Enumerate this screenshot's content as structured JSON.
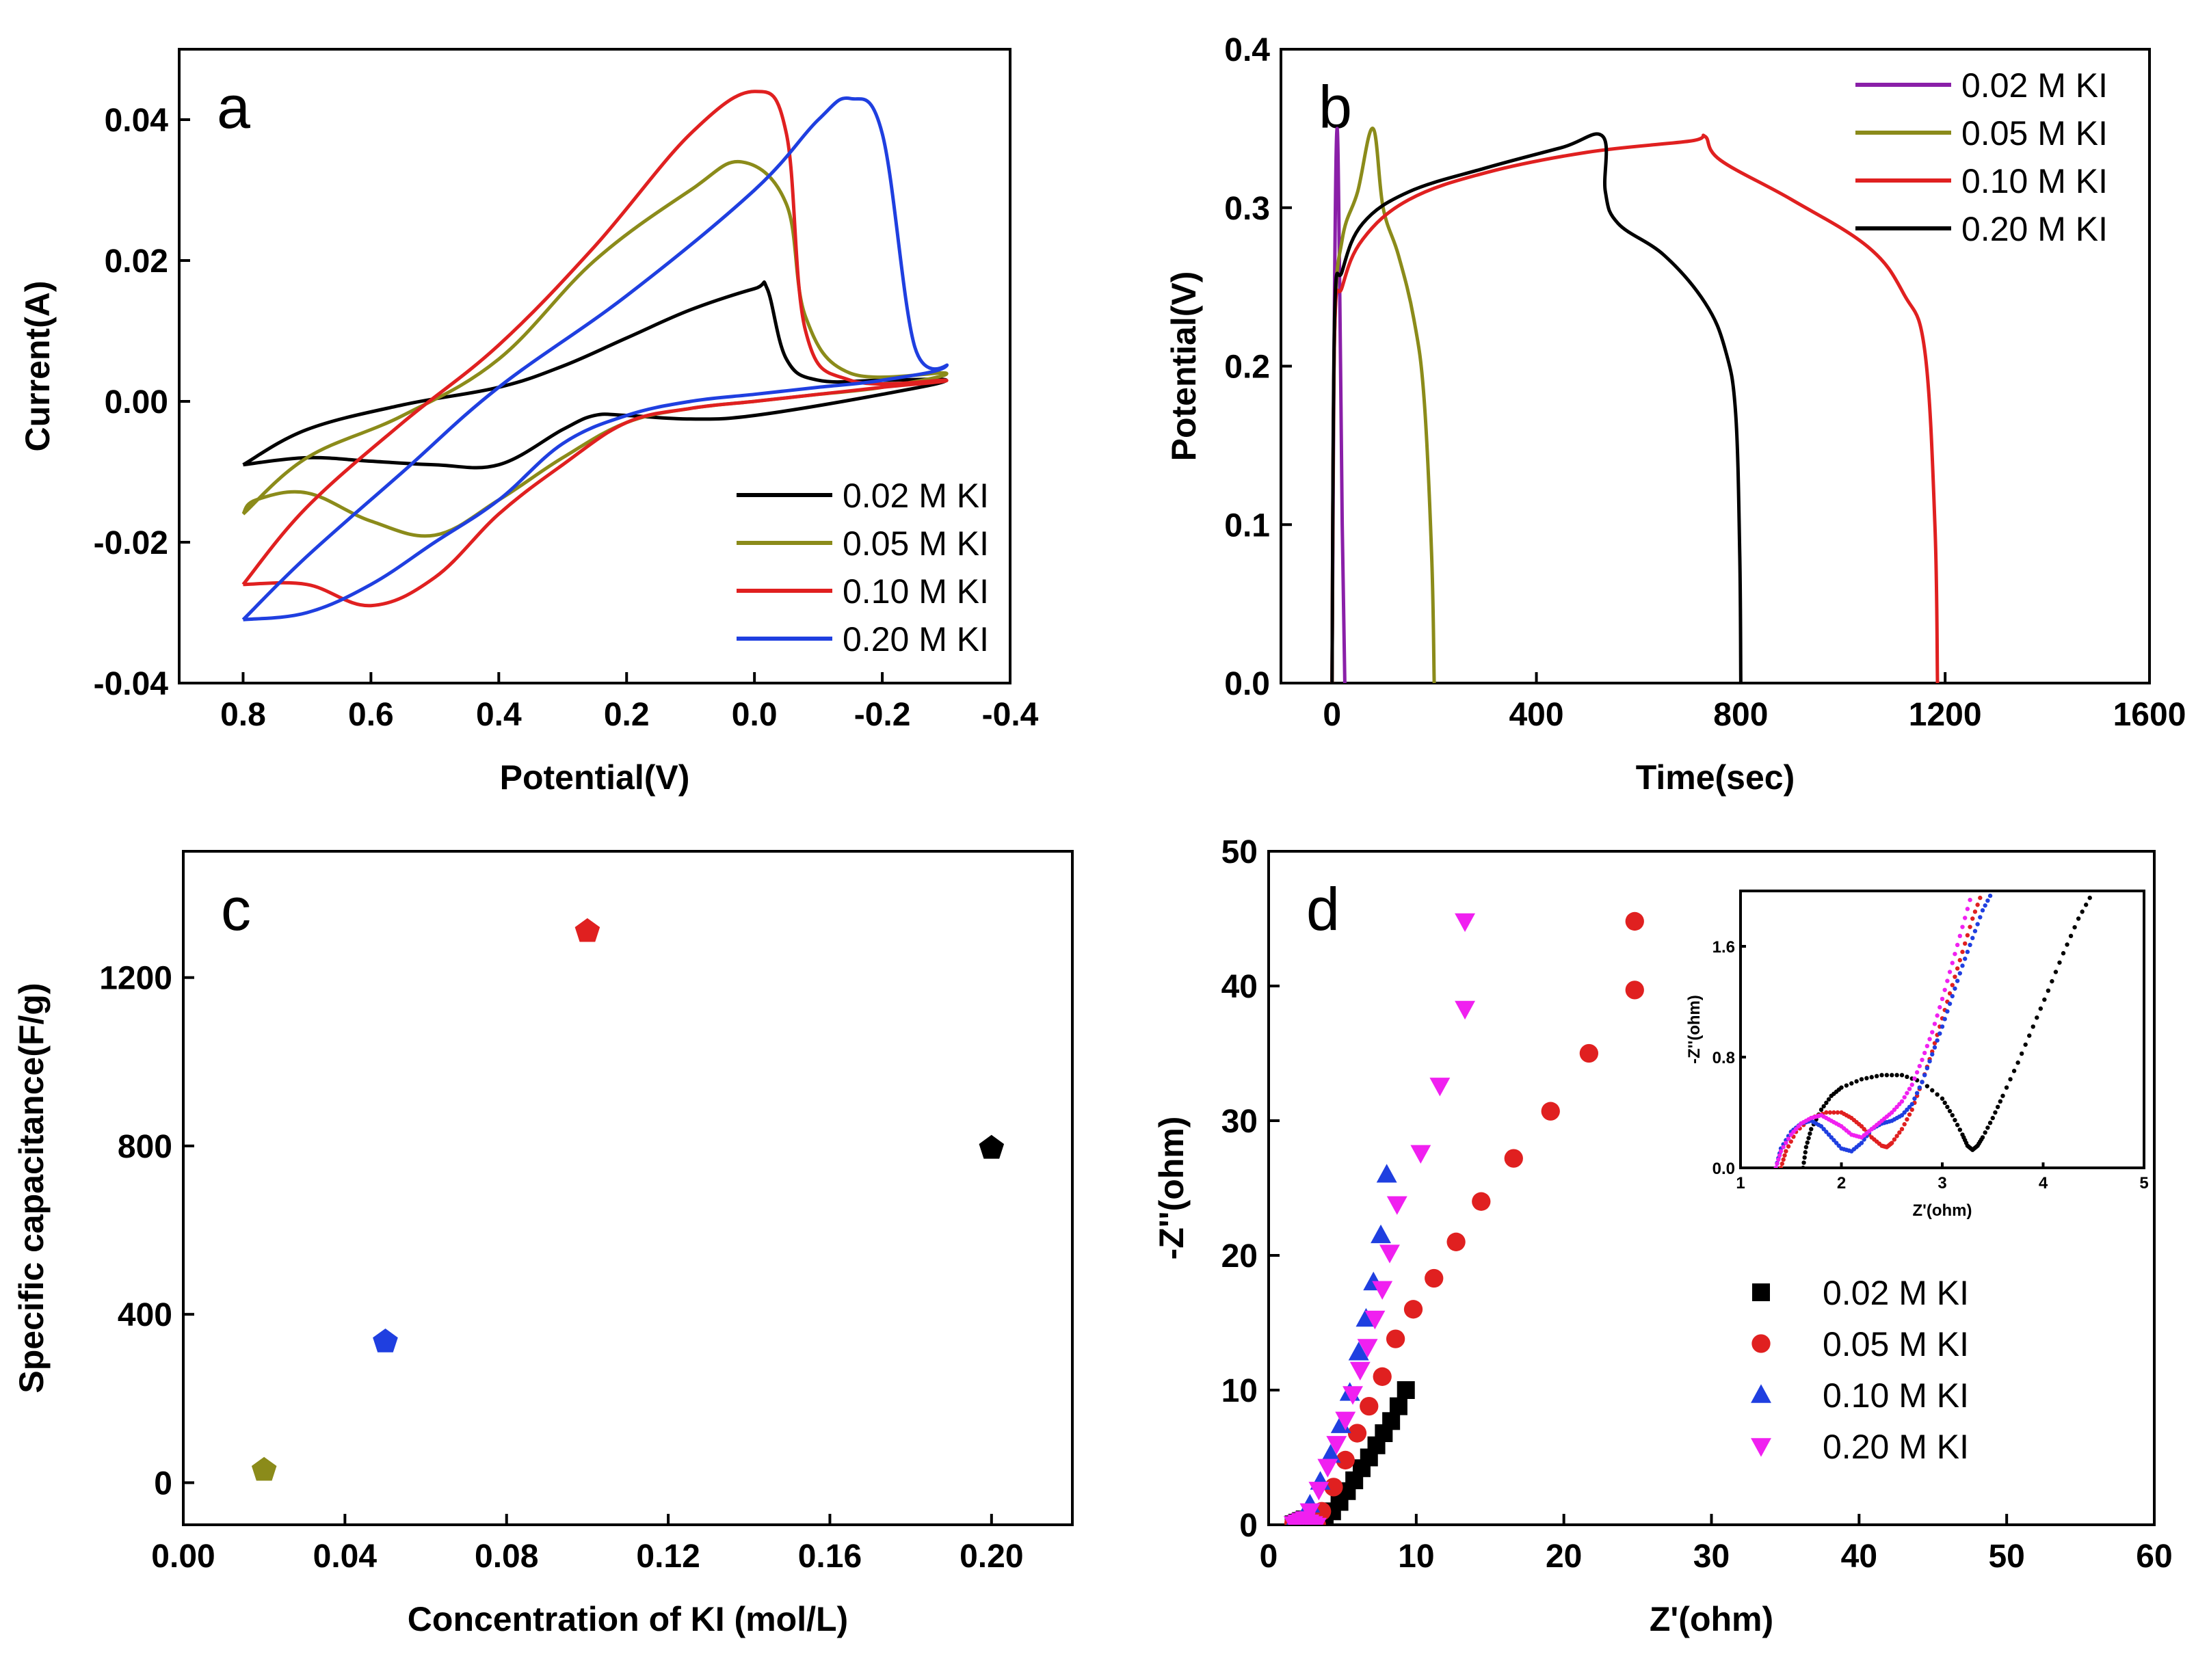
{
  "colors": {
    "black": "#000000",
    "olive": "#8B8B1A",
    "red": "#E02020",
    "blue": "#1F3FE0",
    "purple": "#8A1FA8",
    "magenta": "#F020F0"
  },
  "chart_data": [
    {
      "panel": "a",
      "type": "line",
      "title": "",
      "xlabel": "Potential(V)",
      "ylabel": "Current(A)",
      "xlim": [
        0.9,
        -0.4
      ],
      "ylim": [
        -0.04,
        0.05
      ],
      "xticks": [
        {
          "v": 0.8,
          "label": "0.8"
        },
        {
          "v": 0.6,
          "label": "0.6"
        },
        {
          "v": 0.4,
          "label": "0.4"
        },
        {
          "v": 0.2,
          "label": "0.2"
        },
        {
          "v": 0.0,
          "label": "0.0"
        },
        {
          "v": -0.2,
          "label": "-0.2"
        },
        {
          "v": -0.4,
          "label": "-0.4"
        }
      ],
      "yticks": [
        {
          "v": -0.04,
          "label": "-0.04"
        },
        {
          "v": -0.02,
          "label": "-0.02"
        },
        {
          "v": 0.0,
          "label": "0.00"
        },
        {
          "v": 0.02,
          "label": "0.02"
        },
        {
          "v": 0.04,
          "label": "0.04"
        }
      ],
      "legend_position": "bottom-right",
      "series": [
        {
          "name": "0.02 M KI",
          "color": "#000000",
          "x": [
            0.8,
            0.7,
            0.55,
            0.4,
            0.3,
            0.2,
            0.1,
            0.0,
            -0.02,
            -0.05,
            -0.1,
            -0.2,
            -0.3,
            -0.2,
            0.0,
            0.1,
            0.2,
            0.25,
            0.3,
            0.4,
            0.5,
            0.6,
            0.7,
            0.8
          ],
          "y": [
            -0.009,
            -0.004,
            -0.0005,
            0.002,
            0.005,
            0.009,
            0.013,
            0.016,
            0.016,
            0.006,
            0.003,
            0.003,
            0.003,
            0.001,
            -0.002,
            -0.0025,
            -0.002,
            -0.002,
            -0.004,
            -0.009,
            -0.009,
            -0.0085,
            -0.008,
            -0.009
          ]
        },
        {
          "name": "0.05 M KI",
          "color": "#8B8B1A",
          "x": [
            0.8,
            0.7,
            0.55,
            0.4,
            0.25,
            0.1,
            0.02,
            -0.05,
            -0.08,
            -0.15,
            -0.3,
            -0.2,
            -0.1,
            0.0,
            0.1,
            0.2,
            0.3,
            0.4,
            0.5,
            0.6,
            0.7,
            0.78,
            0.8
          ],
          "y": [
            -0.016,
            -0.008,
            -0.002,
            0.006,
            0.02,
            0.03,
            0.034,
            0.028,
            0.012,
            0.004,
            0.004,
            0.002,
            0.001,
            0.0,
            -0.001,
            -0.003,
            -0.008,
            -0.014,
            -0.019,
            -0.017,
            -0.013,
            -0.014,
            -0.016
          ]
        },
        {
          "name": "0.10 M KI",
          "color": "#E02020",
          "x": [
            0.8,
            0.7,
            0.55,
            0.4,
            0.25,
            0.1,
            0.0,
            -0.05,
            -0.08,
            -0.15,
            -0.3,
            -0.2,
            -0.1,
            0.0,
            0.1,
            0.2,
            0.3,
            0.4,
            0.5,
            0.6,
            0.7,
            0.8
          ],
          "y": [
            -0.026,
            -0.015,
            -0.003,
            0.008,
            0.022,
            0.038,
            0.044,
            0.038,
            0.01,
            0.003,
            0.003,
            0.002,
            0.001,
            0.0,
            -0.001,
            -0.003,
            -0.009,
            -0.016,
            -0.025,
            -0.029,
            -0.026,
            -0.026
          ]
        },
        {
          "name": "0.20 M KI",
          "color": "#1F3FE0",
          "x": [
            0.8,
            0.7,
            0.55,
            0.4,
            0.2,
            0.0,
            -0.1,
            -0.15,
            -0.2,
            -0.25,
            -0.3,
            -0.2,
            -0.1,
            0.0,
            0.1,
            0.2,
            0.3,
            0.4,
            0.5,
            0.6,
            0.7,
            0.8
          ],
          "y": [
            -0.031,
            -0.022,
            -0.01,
            0.002,
            0.015,
            0.03,
            0.04,
            0.043,
            0.038,
            0.008,
            0.005,
            0.003,
            0.002,
            0.001,
            0.0,
            -0.002,
            -0.006,
            -0.014,
            -0.02,
            -0.026,
            -0.03,
            -0.031
          ]
        }
      ]
    },
    {
      "panel": "b",
      "type": "line",
      "title": "",
      "xlabel": "Time(sec)",
      "ylabel": "Potential(V)",
      "xlim": [
        -100,
        1600
      ],
      "ylim": [
        0.0,
        0.4
      ],
      "xticks": [
        {
          "v": 0,
          "label": "0"
        },
        {
          "v": 400,
          "label": "400"
        },
        {
          "v": 800,
          "label": "800"
        },
        {
          "v": 1200,
          "label": "1200"
        },
        {
          "v": 1600,
          "label": "1600"
        }
      ],
      "yticks": [
        {
          "v": 0.0,
          "label": "0.0"
        },
        {
          "v": 0.1,
          "label": "0.1"
        },
        {
          "v": 0.2,
          "label": "0.2"
        },
        {
          "v": 0.3,
          "label": "0.3"
        },
        {
          "v": 0.4,
          "label": "0.4"
        }
      ],
      "legend_position": "top-right",
      "series": [
        {
          "name": "0.02 M KI",
          "color": "#8A1FA8",
          "x": [
            0,
            5,
            10,
            15,
            20,
            25
          ],
          "y": [
            0.0,
            0.25,
            0.35,
            0.25,
            0.1,
            0.0
          ]
        },
        {
          "name": "0.05 M KI",
          "color": "#8B8B1A",
          "x": [
            0,
            5,
            20,
            50,
            80,
            100,
            130,
            160,
            180,
            195,
            200
          ],
          "y": [
            0.0,
            0.22,
            0.28,
            0.31,
            0.35,
            0.3,
            0.27,
            0.23,
            0.18,
            0.08,
            0.0
          ]
        },
        {
          "name": "0.10 M KI",
          "color": "#E02020",
          "x": [
            0,
            5,
            20,
            60,
            150,
            300,
            500,
            700,
            730,
            760,
            900,
            1050,
            1120,
            1160,
            1180,
            1185
          ],
          "y": [
            0.0,
            0.22,
            0.25,
            0.28,
            0.305,
            0.322,
            0.335,
            0.342,
            0.345,
            0.33,
            0.305,
            0.275,
            0.245,
            0.21,
            0.1,
            0.0
          ]
        },
        {
          "name": "0.20 M KI",
          "color": "#000000",
          "x": [
            0,
            5,
            20,
            60,
            150,
            300,
            450,
            530,
            535,
            560,
            650,
            730,
            770,
            790,
            798,
            800
          ],
          "y": [
            0.0,
            0.23,
            0.26,
            0.29,
            0.31,
            0.325,
            0.338,
            0.345,
            0.31,
            0.29,
            0.27,
            0.24,
            0.21,
            0.17,
            0.08,
            0.0
          ]
        }
      ]
    },
    {
      "panel": "c",
      "type": "scatter",
      "title": "",
      "xlabel": "Concentration of KI (mol/L)",
      "ylabel": "Specific capacitance(F/g)",
      "xlim": [
        0.0,
        0.22
      ],
      "ylim": [
        -100,
        1500
      ],
      "xticks": [
        {
          "v": 0.0,
          "label": "0.00"
        },
        {
          "v": 0.04,
          "label": "0.04"
        },
        {
          "v": 0.08,
          "label": "0.08"
        },
        {
          "v": 0.12,
          "label": "0.12"
        },
        {
          "v": 0.16,
          "label": "0.16"
        },
        {
          "v": 0.2,
          "label": "0.20"
        }
      ],
      "yticks": [
        {
          "v": 0,
          "label": "0"
        },
        {
          "v": 400,
          "label": "400"
        },
        {
          "v": 800,
          "label": "800"
        },
        {
          "v": 1200,
          "label": "1200"
        }
      ],
      "points": [
        {
          "x": 0.02,
          "y": 30,
          "color": "#8B8B1A"
        },
        {
          "x": 0.05,
          "y": 335,
          "color": "#1F3FE0"
        },
        {
          "x": 0.1,
          "y": 1310,
          "color": "#E02020"
        },
        {
          "x": 0.2,
          "y": 795,
          "color": "#000000"
        }
      ]
    },
    {
      "panel": "d",
      "type": "scatter",
      "title": "",
      "xlabel": "Z'(ohm)",
      "ylabel": "-Z''(ohm)",
      "xlim": [
        0,
        60
      ],
      "ylim": [
        0,
        50
      ],
      "xticks": [
        {
          "v": 0,
          "label": "0"
        },
        {
          "v": 10,
          "label": "10"
        },
        {
          "v": 20,
          "label": "20"
        },
        {
          "v": 30,
          "label": "30"
        },
        {
          "v": 40,
          "label": "40"
        },
        {
          "v": 50,
          "label": "50"
        },
        {
          "v": 60,
          "label": "60"
        }
      ],
      "yticks": [
        {
          "v": 0,
          "label": "0"
        },
        {
          "v": 10,
          "label": "10"
        },
        {
          "v": 20,
          "label": "20"
        },
        {
          "v": 30,
          "label": "30"
        },
        {
          "v": 40,
          "label": "40"
        },
        {
          "v": 50,
          "label": "50"
        }
      ],
      "legend_position": "bottom-right",
      "series": [
        {
          "name": "0.02 M KI",
          "color": "#000000",
          "marker": "square",
          "x": [
            3.8,
            4.3,
            4.8,
            5.3,
            5.8,
            6.3,
            6.8,
            7.3,
            7.8,
            8.3,
            8.8,
            9.3
          ],
          "y": [
            0.4,
            1.0,
            1.7,
            2.5,
            3.3,
            4.2,
            5.0,
            5.9,
            6.8,
            7.7,
            8.8,
            10.0
          ]
        },
        {
          "name": "0.05 M KI",
          "color": "#E02020",
          "marker": "circle",
          "x": [
            3.6,
            4.4,
            5.2,
            6.0,
            6.8,
            7.7,
            8.6,
            9.8,
            11.2,
            12.7,
            14.4,
            16.6,
            19.1,
            21.7,
            24.8
          ],
          "y": [
            1.0,
            2.8,
            4.8,
            6.8,
            8.8,
            11.0,
            13.8,
            16.0,
            18.3,
            21.0,
            24.0,
            27.2,
            30.7,
            35.0,
            39.7
          ]
        },
        {
          "name": "0.10 M KI",
          "color": "#1F3FE0",
          "marker": "triangle-up",
          "x": [
            2.8,
            3.5,
            4.2,
            4.9,
            5.5,
            6.1,
            6.6,
            7.1,
            7.6,
            8.0
          ],
          "y": [
            1.5,
            3.2,
            5.2,
            7.4,
            9.8,
            12.8,
            15.3,
            18.0,
            21.5,
            26.0
          ]
        },
        {
          "name": "0.20 M KI",
          "color": "#F020F0",
          "marker": "triangle-down",
          "x": [
            2.8,
            3.4,
            4.0,
            4.6,
            5.2,
            5.7,
            6.2,
            6.7,
            7.2,
            7.7,
            8.2,
            8.7,
            10.3,
            11.6,
            13.3
          ],
          "y": [
            1.0,
            2.6,
            4.3,
            6.0,
            7.8,
            9.7,
            11.5,
            13.2,
            15.3,
            17.5,
            20.2,
            23.8,
            27.6,
            32.6,
            38.3
          ]
        }
      ],
      "extra_points": [
        {
          "series": "0.05 M KI",
          "x": 24.8,
          "y": 44.8
        },
        {
          "series": "0.20 M KI",
          "x": 13.3,
          "y": 44.8
        }
      ],
      "inset": {
        "xlabel": "Z'(ohm)",
        "ylabel": "-Z''(ohm)",
        "xlim": [
          1,
          5
        ],
        "ylim": [
          0,
          2.0
        ],
        "xticks": [
          {
            "v": 1,
            "label": "1"
          },
          {
            "v": 2,
            "label": "2"
          },
          {
            "v": 3,
            "label": "3"
          },
          {
            "v": 4,
            "label": "4"
          },
          {
            "v": 5,
            "label": "5"
          }
        ],
        "yticks": [
          {
            "v": 0.0,
            "label": "0.0"
          },
          {
            "v": 0.8,
            "label": "0.8"
          },
          {
            "v": 1.6,
            "label": "1.6"
          }
        ],
        "series": [
          {
            "name": "0.02 M KI",
            "color": "#000000",
            "x": [
              1.62,
              1.65,
              1.7,
              1.8,
              1.9,
              2.0,
              2.2,
              2.4,
              2.6,
              2.8,
              3.0,
              3.1,
              3.2,
              3.25,
              3.3,
              3.35,
              3.4,
              3.5,
              3.6,
              3.75,
              3.9,
              4.05,
              4.2,
              4.35,
              4.5
            ],
            "y": [
              0.0,
              0.15,
              0.28,
              0.42,
              0.52,
              0.58,
              0.64,
              0.67,
              0.67,
              0.62,
              0.5,
              0.38,
              0.24,
              0.16,
              0.13,
              0.16,
              0.22,
              0.36,
              0.52,
              0.76,
              1.02,
              1.28,
              1.55,
              1.8,
              2.0
            ]
          },
          {
            "name": "0.05 M KI",
            "color": "#E02020",
            "x": [
              1.4,
              1.45,
              1.55,
              1.7,
              1.85,
              2.0,
              2.1,
              2.2,
              2.3,
              2.4,
              2.45,
              2.5,
              2.6,
              2.7,
              2.8,
              2.9,
              3.0,
              3.1,
              3.2,
              3.3,
              3.4
            ],
            "y": [
              0.0,
              0.12,
              0.26,
              0.36,
              0.4,
              0.4,
              0.36,
              0.3,
              0.22,
              0.16,
              0.15,
              0.18,
              0.28,
              0.42,
              0.62,
              0.84,
              1.08,
              1.32,
              1.56,
              1.8,
              2.0
            ]
          },
          {
            "name": "0.10 M KI",
            "color": "#1F3FE0",
            "x": [
              1.35,
              1.4,
              1.5,
              1.6,
              1.7,
              1.8,
              1.9,
              2.0,
              2.1,
              2.2,
              2.3,
              2.4,
              2.5,
              2.6,
              2.7,
              2.8,
              2.9,
              3.0,
              3.1,
              3.2,
              3.3,
              3.4,
              3.5
            ],
            "y": [
              0.0,
              0.14,
              0.26,
              0.32,
              0.34,
              0.3,
              0.22,
              0.14,
              0.12,
              0.18,
              0.28,
              0.32,
              0.34,
              0.38,
              0.46,
              0.62,
              0.82,
              1.02,
              1.24,
              1.46,
              1.66,
              1.86,
              2.0
            ]
          },
          {
            "name": "0.20 M KI",
            "color": "#F020F0",
            "x": [
              1.35,
              1.4,
              1.5,
              1.6,
              1.7,
              1.8,
              1.9,
              2.0,
              2.1,
              2.2,
              2.3,
              2.4,
              2.5,
              2.6,
              2.7,
              2.8,
              2.9,
              3.0,
              3.1,
              3.2,
              3.3
            ],
            "y": [
              0.0,
              0.12,
              0.24,
              0.32,
              0.36,
              0.38,
              0.34,
              0.3,
              0.24,
              0.22,
              0.28,
              0.34,
              0.4,
              0.48,
              0.6,
              0.78,
              0.98,
              1.22,
              1.48,
              1.74,
              2.0
            ]
          }
        ]
      }
    }
  ]
}
